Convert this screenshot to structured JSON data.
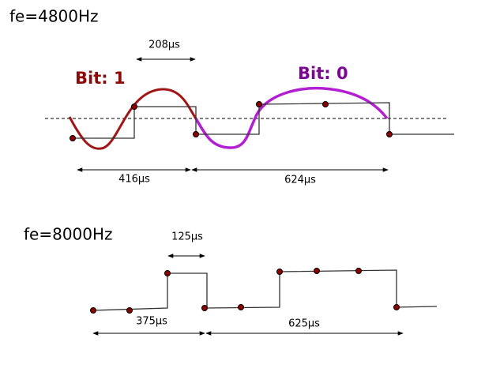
{
  "top": {
    "title": "fe=4800Hz",
    "half_period": "208µs",
    "bit1": "Bit: 1",
    "bit0": "Bit: 0",
    "duration1": "416µs",
    "duration0": "624µs"
  },
  "bottom": {
    "title": "fe=8000Hz",
    "sample_period": "125µs",
    "duration1": "375µs",
    "duration0": "625µs"
  }
}
